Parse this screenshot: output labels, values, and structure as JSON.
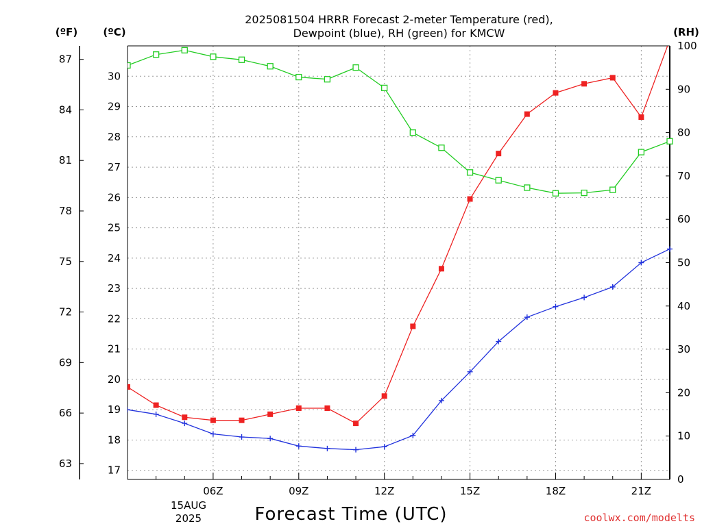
{
  "chart_data": {
    "type": "line",
    "title_line1": "2025081504 HRRR Forecast 2-meter Temperature (red),",
    "title_line2": "Dewpoint (blue), RH (green) for KMCW",
    "xlabel": "Forecast Time (UTC)",
    "watermark": "coolwx.com/modelts",
    "axis_unit_f": "(ºF)",
    "axis_unit_c": "(ºC)",
    "axis_unit_rh": "(RH)",
    "date_label_day": "15AUG",
    "date_label_year": "2025",
    "x": [
      "03Z",
      "04Z",
      "05Z",
      "06Z",
      "07Z",
      "08Z",
      "09Z",
      "10Z",
      "11Z",
      "12Z",
      "13Z",
      "14Z",
      "15Z",
      "16Z",
      "17Z",
      "18Z",
      "19Z",
      "20Z",
      "21Z",
      "22Z"
    ],
    "x_tick_labels": [
      "06Z",
      "09Z",
      "12Z",
      "15Z",
      "18Z",
      "21Z"
    ],
    "ylim_c": [
      16.7,
      31.0
    ],
    "y_ticks_c": [
      17,
      18,
      19,
      20,
      21,
      22,
      23,
      24,
      25,
      26,
      27,
      28,
      29,
      30
    ],
    "y_ticks_f": [
      63,
      66,
      69,
      72,
      75,
      78,
      81,
      84,
      87
    ],
    "ylim_rh": [
      0,
      100
    ],
    "y_ticks_rh": [
      0,
      10,
      20,
      30,
      40,
      50,
      60,
      70,
      80,
      90,
      100
    ],
    "grid": true,
    "series": [
      {
        "name": "Temperature",
        "axis": "C",
        "color": "#ee2222",
        "marker": "filled-square",
        "values": [
          19.75,
          19.15,
          18.75,
          18.65,
          18.65,
          18.85,
          19.05,
          19.05,
          18.55,
          19.45,
          21.75,
          23.65,
          25.95,
          27.45,
          28.75,
          29.45,
          29.75,
          29.95,
          28.65,
          31.2
        ]
      },
      {
        "name": "Dewpoint",
        "axis": "C",
        "color": "#2233dd",
        "marker": "plus",
        "values": [
          19.0,
          18.85,
          18.55,
          18.2,
          18.1,
          18.05,
          17.8,
          17.72,
          17.68,
          17.78,
          18.15,
          19.3,
          20.25,
          21.25,
          22.05,
          22.4,
          22.7,
          23.05,
          23.85,
          24.3
        ]
      },
      {
        "name": "RH",
        "axis": "RH",
        "color": "#22cc22",
        "marker": "open-square",
        "values": [
          95.5,
          98.0,
          99.0,
          97.5,
          96.8,
          95.3,
          92.8,
          92.3,
          95.0,
          90.3,
          80.0,
          76.5,
          70.8,
          69.0,
          67.3,
          66.0,
          66.1,
          66.8,
          75.5,
          78.0
        ]
      }
    ]
  }
}
